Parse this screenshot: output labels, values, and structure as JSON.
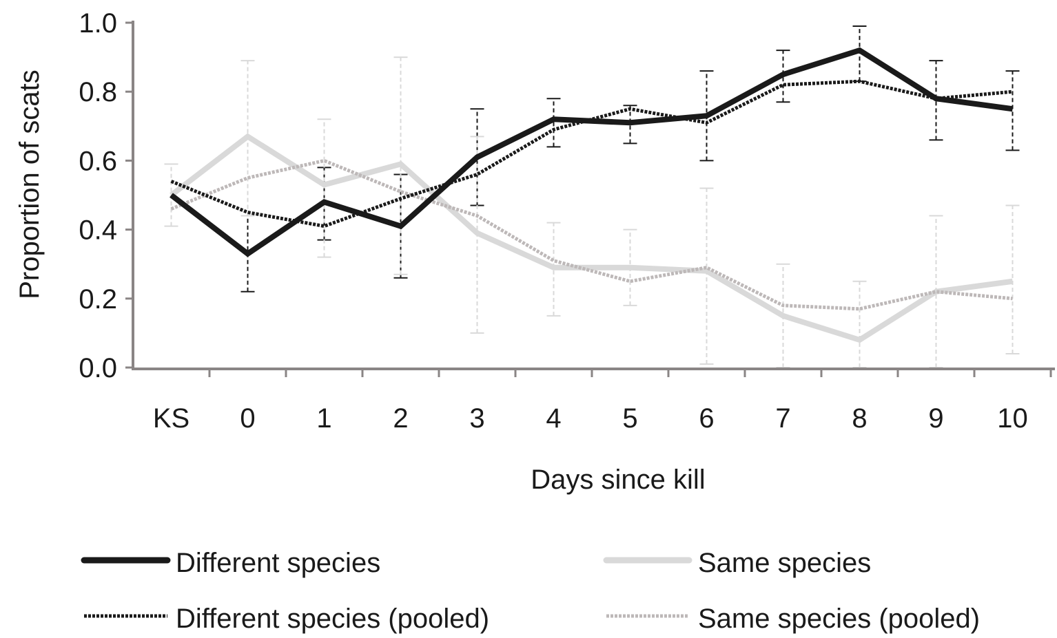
{
  "chart_data": {
    "type": "line",
    "title": "",
    "xlabel": "Days since kill",
    "ylabel": "Proportion of scats",
    "categories": [
      "KS",
      "0",
      "1",
      "2",
      "3",
      "4",
      "5",
      "6",
      "7",
      "8",
      "9",
      "10"
    ],
    "ylim": [
      0,
      1.0
    ],
    "yticks": [
      "0.0",
      "0.2",
      "0.4",
      "0.6",
      "0.8",
      "1.0"
    ],
    "grid": false,
    "legend_position": "bottom",
    "series": [
      {
        "name": "Different species",
        "color": "#1a1a1a",
        "style": "solid-thick",
        "values": [
          0.5,
          0.33,
          0.48,
          0.41,
          0.61,
          0.72,
          0.71,
          0.73,
          0.85,
          0.92,
          0.78,
          0.75
        ],
        "error_low": [
          null,
          0.22,
          0.37,
          0.26,
          0.47,
          0.64,
          0.65,
          0.6,
          0.77,
          0.83,
          0.66,
          0.63
        ],
        "error_high": [
          null,
          0.44,
          0.58,
          0.56,
          0.75,
          0.78,
          0.76,
          0.86,
          0.92,
          0.99,
          0.89,
          0.86
        ]
      },
      {
        "name": "Different species (pooled)",
        "color": "#1a1a1a",
        "style": "dashed",
        "values": [
          0.54,
          0.45,
          0.41,
          0.49,
          0.56,
          0.69,
          0.75,
          0.71,
          0.82,
          0.83,
          0.78,
          0.8
        ],
        "error_low": [
          null,
          null,
          null,
          null,
          null,
          null,
          null,
          null,
          null,
          null,
          null,
          null
        ],
        "error_high": [
          null,
          null,
          null,
          null,
          null,
          null,
          null,
          null,
          null,
          null,
          null,
          null
        ]
      },
      {
        "name": "Same species",
        "color": "#d9d9d9",
        "style": "solid-thick",
        "values": [
          0.5,
          0.67,
          0.53,
          0.59,
          0.39,
          0.29,
          0.29,
          0.28,
          0.15,
          0.08,
          0.22,
          0.25
        ],
        "error_low": [
          0.41,
          0.44,
          0.32,
          0.27,
          0.1,
          0.15,
          0.18,
          0.01,
          0.0,
          0.0,
          0.0,
          0.04
        ],
        "error_high": [
          0.59,
          0.89,
          0.72,
          0.9,
          0.67,
          0.42,
          0.4,
          0.52,
          0.3,
          0.25,
          0.44,
          0.47
        ]
      },
      {
        "name": "Same species (pooled)",
        "color": "#bdb8b8",
        "style": "dashed",
        "values": [
          0.46,
          0.55,
          0.6,
          0.51,
          0.44,
          0.31,
          0.25,
          0.29,
          0.18,
          0.17,
          0.22,
          0.2
        ],
        "error_low": [
          null,
          null,
          null,
          null,
          null,
          null,
          null,
          null,
          null,
          null,
          null,
          null
        ],
        "error_high": [
          null,
          null,
          null,
          null,
          null,
          null,
          null,
          null,
          null,
          null,
          null,
          null
        ]
      }
    ]
  },
  "colors": {
    "axis": "#8a8585"
  }
}
